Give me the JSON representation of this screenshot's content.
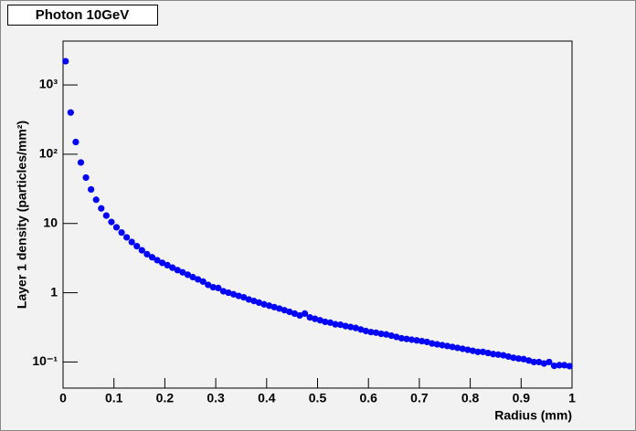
{
  "chart_data": {
    "type": "scatter",
    "title": "Photon 10GeV",
    "xlabel": "Radius (mm)",
    "ylabel": "Layer 1 density (particles/mm²)",
    "log_y": true,
    "color": "#0000ff",
    "xlim": [
      0,
      1
    ],
    "xticks": [
      0,
      0.1,
      0.2,
      0.3,
      0.4,
      0.5,
      0.6,
      0.7,
      0.8,
      0.9,
      1
    ],
    "ylim": [
      0.042,
      4300
    ],
    "yticks": [
      {
        "value": 0.1,
        "label": "10⁻¹"
      },
      1,
      10,
      {
        "value": 100,
        "label": "10²"
      },
      {
        "value": 1000,
        "label": "10³"
      }
    ],
    "x": [
      0.005,
      0.015,
      0.025,
      0.035,
      0.045,
      0.055,
      0.065,
      0.075,
      0.085,
      0.095,
      0.105,
      0.115,
      0.125,
      0.135,
      0.145,
      0.155,
      0.165,
      0.175,
      0.185,
      0.195,
      0.205,
      0.215,
      0.225,
      0.235,
      0.245,
      0.255,
      0.265,
      0.275,
      0.285,
      0.295,
      0.305,
      0.315,
      0.325,
      0.335,
      0.345,
      0.355,
      0.365,
      0.375,
      0.385,
      0.395,
      0.405,
      0.415,
      0.425,
      0.435,
      0.445,
      0.455,
      0.465,
      0.475,
      0.485,
      0.495,
      0.505,
      0.515,
      0.525,
      0.535,
      0.545,
      0.555,
      0.565,
      0.575,
      0.585,
      0.595,
      0.605,
      0.615,
      0.625,
      0.635,
      0.645,
      0.655,
      0.665,
      0.675,
      0.685,
      0.695,
      0.705,
      0.715,
      0.725,
      0.735,
      0.745,
      0.755,
      0.765,
      0.775,
      0.785,
      0.795,
      0.805,
      0.815,
      0.825,
      0.835,
      0.845,
      0.855,
      0.865,
      0.875,
      0.885,
      0.895,
      0.905,
      0.915,
      0.925,
      0.935,
      0.945,
      0.955,
      0.965,
      0.975,
      0.985,
      0.995
    ],
    "values": [
      2200,
      400,
      150,
      76,
      46,
      31,
      22,
      16.5,
      13,
      10.5,
      8.8,
      7.4,
      6.3,
      5.4,
      4.7,
      4.1,
      3.6,
      3.25,
      2.95,
      2.7,
      2.5,
      2.3,
      2.12,
      1.97,
      1.82,
      1.68,
      1.56,
      1.45,
      1.3,
      1.2,
      1.17,
      1.05,
      1.0,
      0.95,
      0.9,
      0.86,
      0.8,
      0.76,
      0.72,
      0.68,
      0.65,
      0.62,
      0.59,
      0.56,
      0.53,
      0.5,
      0.47,
      0.5,
      0.44,
      0.42,
      0.4,
      0.38,
      0.37,
      0.35,
      0.345,
      0.33,
      0.32,
      0.31,
      0.295,
      0.28,
      0.27,
      0.265,
      0.255,
      0.25,
      0.24,
      0.23,
      0.22,
      0.215,
      0.21,
      0.205,
      0.2,
      0.195,
      0.185,
      0.18,
      0.175,
      0.17,
      0.165,
      0.16,
      0.155,
      0.15,
      0.145,
      0.14,
      0.14,
      0.135,
      0.13,
      0.128,
      0.125,
      0.12,
      0.115,
      0.112,
      0.11,
      0.105,
      0.1,
      0.1,
      0.095,
      0.1,
      0.088,
      0.09,
      0.09,
      0.087
    ]
  }
}
